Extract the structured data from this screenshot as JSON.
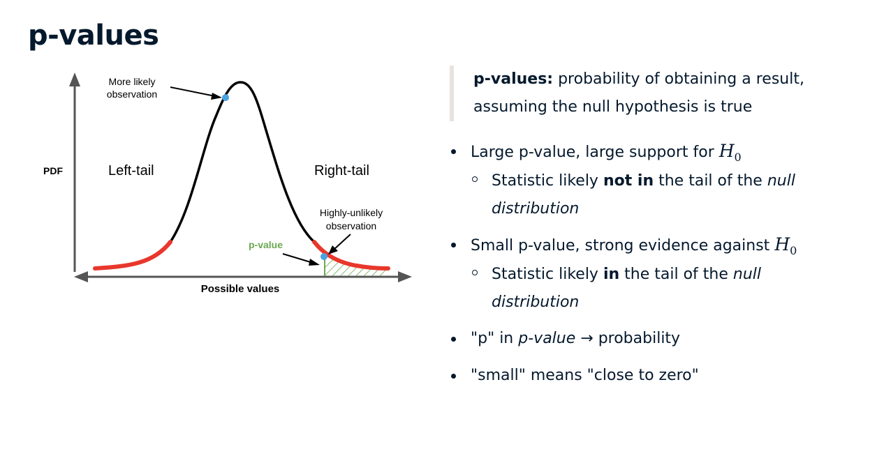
{
  "title": "p-values",
  "diagram": {
    "y_axis_label": "PDF",
    "x_axis_label": "Possible values",
    "left_tail_label": "Left-tail",
    "right_tail_label": "Right-tail",
    "annotation_likely_line1": "More likely",
    "annotation_likely_line2": "observation",
    "annotation_unlikely_line1": "Highly-unlikely",
    "annotation_unlikely_line2": "observation",
    "pvalue_label": "p-value",
    "colors": {
      "curve": "#000000",
      "tails": "#e8372c",
      "observation_point": "#4aa3e0",
      "pvalue_area": "#6aa84f",
      "axes": "#555555"
    }
  },
  "definition": {
    "term": "p-values:",
    "text": "probability of obtaining a result, assuming the null hypothesis is true"
  },
  "bullets": {
    "b1": {
      "text": "Large p-value, large support for",
      "sub_text_a": "Statistic likely",
      "sub_bold": "not in",
      "sub_text_b": "the tail of the",
      "sub_italic_1": "null",
      "sub_italic_2": "distribution"
    },
    "b2": {
      "text": "Small p-value, strong evidence against",
      "sub_text_a": "Statistic likely",
      "sub_bold": "in",
      "sub_text_b": "the tail of the",
      "sub_italic_1": "null",
      "sub_italic_2": "distribution"
    },
    "b3": {
      "text_a": "\"p\" in",
      "text_italic": "p-value",
      "text_b": "→ probability"
    },
    "b4": {
      "text": "\"small\" means \"close to zero\""
    }
  },
  "hypothesis_symbol": "H",
  "hypothesis_subscript": "0"
}
